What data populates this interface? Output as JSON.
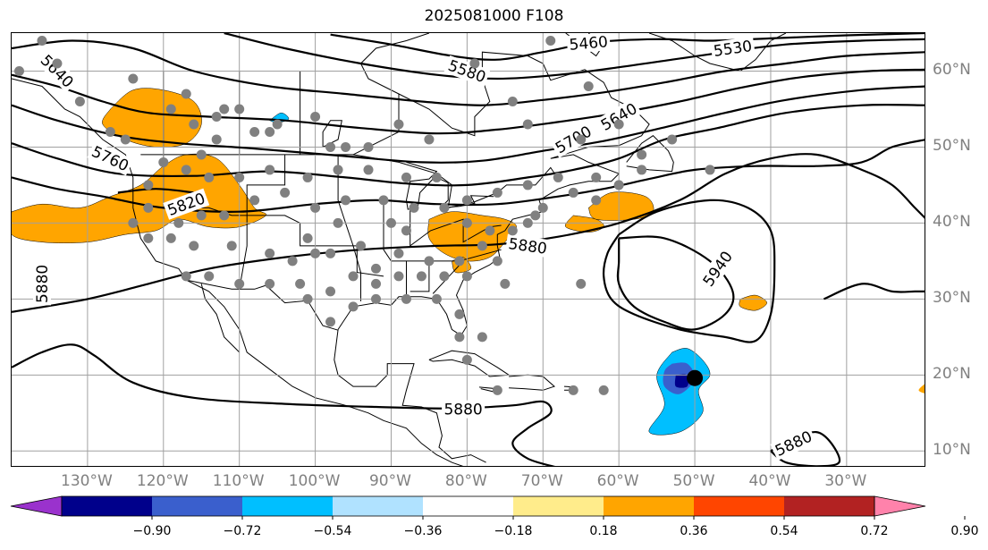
{
  "title": "2025081000 F108",
  "map": {
    "lon_labels": [
      {
        "lon": -130,
        "text": "130°W"
      },
      {
        "lon": -120,
        "text": "120°W"
      },
      {
        "lon": -110,
        "text": "110°W"
      },
      {
        "lon": -100,
        "text": "100°W"
      },
      {
        "lon": -90,
        "text": "90°W"
      },
      {
        "lon": -80,
        "text": "80°W"
      },
      {
        "lon": -70,
        "text": "70°W"
      },
      {
        "lon": -60,
        "text": "60°W"
      },
      {
        "lon": -50,
        "text": "50°W"
      },
      {
        "lon": -40,
        "text": "40°W"
      },
      {
        "lon": -30,
        "text": "30°W"
      }
    ],
    "lat_labels": [
      {
        "lat": 60,
        "text": "60°N"
      },
      {
        "lat": 50,
        "text": "50°N"
      },
      {
        "lat": 40,
        "text": "40°N"
      },
      {
        "lat": 30,
        "text": "30°N"
      },
      {
        "lat": 20,
        "text": "20°N"
      },
      {
        "lat": 10,
        "text": "10°N"
      }
    ],
    "contour_labels": [
      {
        "text": "5460",
        "lon": -64,
        "lat": 63.7,
        "angle": -5
      },
      {
        "text": "5530",
        "lon": -45,
        "lat": 63,
        "angle": -8
      },
      {
        "text": "5580",
        "lon": -80,
        "lat": 60,
        "angle": 20
      },
      {
        "text": "5640",
        "lon": -60,
        "lat": 54,
        "angle": -30
      },
      {
        "text": "5700",
        "lon": -66,
        "lat": 51,
        "angle": -30
      },
      {
        "text": "5760",
        "lon": -127,
        "lat": 48.5,
        "angle": 25
      },
      {
        "text": "5820",
        "lon": -117,
        "lat": 42.5,
        "angle": -20
      },
      {
        "text": "5880",
        "lon": -72,
        "lat": 37,
        "angle": 8
      },
      {
        "text": "5940",
        "lon": -47,
        "lat": 34,
        "angle": -55
      },
      {
        "text": "5880",
        "lon": -136,
        "lat": 32,
        "angle": -90
      },
      {
        "text": "5880",
        "lon": -80.5,
        "lat": 15.5,
        "angle": 0
      },
      {
        "text": "5880",
        "lon": -37,
        "lat": 11,
        "angle": -25
      },
      {
        "text": "5640",
        "lon": -134,
        "lat": 60,
        "angle": 45
      }
    ],
    "station_points": [
      [
        -139,
        60
      ],
      [
        -134,
        61
      ],
      [
        -124,
        59
      ],
      [
        -136,
        64
      ],
      [
        -131,
        56
      ],
      [
        -127,
        52
      ],
      [
        -125,
        51
      ],
      [
        -119,
        55
      ],
      [
        -116,
        53
      ],
      [
        -113,
        54
      ],
      [
        -112,
        55
      ],
      [
        -113,
        51
      ],
      [
        -115,
        49
      ],
      [
        -117,
        57
      ],
      [
        -110,
        55
      ],
      [
        -108,
        52
      ],
      [
        -106,
        52
      ],
      [
        -105,
        53
      ],
      [
        -100,
        54
      ],
      [
        -98,
        50
      ],
      [
        -96,
        50
      ],
      [
        -93,
        50
      ],
      [
        -89,
        53
      ],
      [
        -85,
        51
      ],
      [
        -79,
        61
      ],
      [
        -74,
        56
      ],
      [
        -69,
        64
      ],
      [
        -64,
        58
      ],
      [
        -72,
        53
      ],
      [
        -65,
        51
      ],
      [
        -60,
        53
      ],
      [
        -57,
        49
      ],
      [
        -53,
        51
      ],
      [
        -48,
        47
      ],
      [
        -122,
        45
      ],
      [
        -120,
        48
      ],
      [
        -117,
        47
      ],
      [
        -114,
        46
      ],
      [
        -110,
        46
      ],
      [
        -106,
        47
      ],
      [
        -101,
        46
      ],
      [
        -97,
        47
      ],
      [
        -93,
        47
      ],
      [
        -88,
        46
      ],
      [
        -84,
        46
      ],
      [
        -80,
        43
      ],
      [
        -76,
        44
      ],
      [
        -72,
        45
      ],
      [
        -68,
        46
      ],
      [
        -63,
        46
      ],
      [
        -60,
        45
      ],
      [
        -57,
        47
      ],
      [
        -63,
        43
      ],
      [
        -66,
        44
      ],
      [
        -70,
        42
      ],
      [
        -72,
        40
      ],
      [
        -74,
        39
      ],
      [
        -77,
        39
      ],
      [
        -80,
        40
      ],
      [
        -83,
        42
      ],
      [
        -87,
        42
      ],
      [
        -91,
        43
      ],
      [
        -96,
        43
      ],
      [
        -100,
        42
      ],
      [
        -104,
        44
      ],
      [
        -108,
        43
      ],
      [
        -112,
        41
      ],
      [
        -115,
        41
      ],
      [
        -118,
        40
      ],
      [
        -122,
        42
      ],
      [
        -124,
        40
      ],
      [
        -122,
        38
      ],
      [
        -119,
        38
      ],
      [
        -116,
        37
      ],
      [
        -111,
        37
      ],
      [
        -106,
        36
      ],
      [
        -101,
        38
      ],
      [
        -98,
        36
      ],
      [
        -94,
        37
      ],
      [
        -89,
        36
      ],
      [
        -85,
        35
      ],
      [
        -81,
        35
      ],
      [
        -78,
        37
      ],
      [
        -76,
        35
      ],
      [
        -80,
        33
      ],
      [
        -83,
        33
      ],
      [
        -86,
        33
      ],
      [
        -89,
        33
      ],
      [
        -92,
        32
      ],
      [
        -95,
        33
      ],
      [
        -98,
        31
      ],
      [
        -102,
        32
      ],
      [
        -106,
        32
      ],
      [
        -110,
        32
      ],
      [
        -114,
        33
      ],
      [
        -117,
        33
      ],
      [
        -95,
        29
      ],
      [
        -98,
        27
      ],
      [
        -101,
        30
      ],
      [
        -92,
        30
      ],
      [
        -88,
        30
      ],
      [
        -84,
        30
      ],
      [
        -81,
        28
      ],
      [
        -81,
        25
      ],
      [
        -78,
        25
      ],
      [
        -80,
        22
      ],
      [
        -76,
        18
      ],
      [
        -66,
        18
      ],
      [
        -62,
        18
      ],
      [
        -65,
        32
      ],
      [
        -103,
        35
      ],
      [
        -97,
        40
      ],
      [
        -88,
        39
      ],
      [
        -90,
        40
      ],
      [
        -100,
        36
      ],
      [
        -92,
        34
      ],
      [
        -75,
        32
      ],
      [
        -71,
        41
      ]
    ],
    "colorbar": {
      "colors": [
        "#9a32cd",
        "#00008b",
        "#3a5fcd",
        "#00bfff",
        "#b0e2ff",
        "#ffffff",
        "#ffec8b",
        "#ffa500",
        "#ff4500",
        "#b22222",
        "#ff82ab"
      ],
      "tick_labels": [
        "−0.90",
        "−0.72",
        "−0.54",
        "−0.36",
        "−0.18",
        "0.18",
        "0.36",
        "0.54",
        "0.72",
        "0.90"
      ]
    }
  }
}
